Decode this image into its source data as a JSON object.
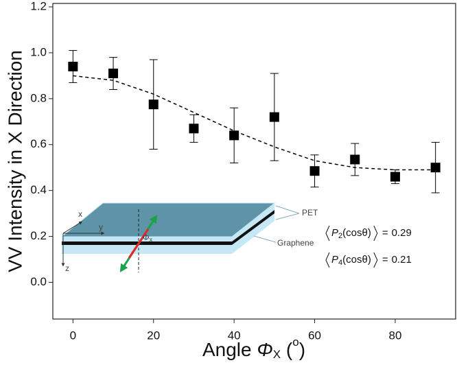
{
  "chart_data": {
    "type": "scatter",
    "ylabel": "VV Intensity in X Direction",
    "xlabel": [
      "Angle ",
      "Φ",
      "X",
      " (",
      "o",
      ")"
    ],
    "xlim": [
      -5,
      95
    ],
    "xticks": [
      0,
      20,
      40,
      60,
      80
    ],
    "ylim": [
      -0.16,
      1.215
    ],
    "yticks": [
      {
        "value": 0,
        "label": "0.0"
      },
      0.2,
      0.4,
      0.6,
      0.8,
      {
        "value": 1,
        "label": "1.0"
      },
      1.2
    ],
    "series": [
      {
        "color": "#000000",
        "marker": "square",
        "x": [
          0,
          10,
          20,
          30,
          40,
          50,
          60,
          70,
          80,
          90
        ],
        "values": [
          0.94,
          0.91,
          0.775,
          0.67,
          0.64,
          0.72,
          0.485,
          0.535,
          0.46,
          0.5
        ],
        "errors": [
          0.07,
          0.07,
          0.195,
          0.06,
          0.12,
          0.19,
          0.07,
          0.07,
          0.03,
          0.11
        ]
      },
      {
        "color": "#000000",
        "dashed": true,
        "x": [
          0,
          10,
          20,
          30,
          40,
          50,
          60,
          70,
          80,
          90
        ],
        "values": [
          0.9,
          0.88,
          0.82,
          0.74,
          0.66,
          0.59,
          0.53,
          0.5,
          0.49,
          0.49
        ]
      }
    ],
    "inset": {
      "labels": {
        "pet": "PET",
        "graphene": "Graphene",
        "x": "x",
        "y": "y",
        "z": "z",
        "phi": "Φ",
        "phi_sub": "x"
      },
      "annotations": [
        {
          "symbol": "P",
          "index": "2",
          "argument": "(cosθ)",
          "relation": "=",
          "value": 0.29
        },
        {
          "symbol": "P",
          "index": "4",
          "argument": "(cosθ)",
          "relation": "=",
          "value": 0.21
        }
      ]
    }
  }
}
